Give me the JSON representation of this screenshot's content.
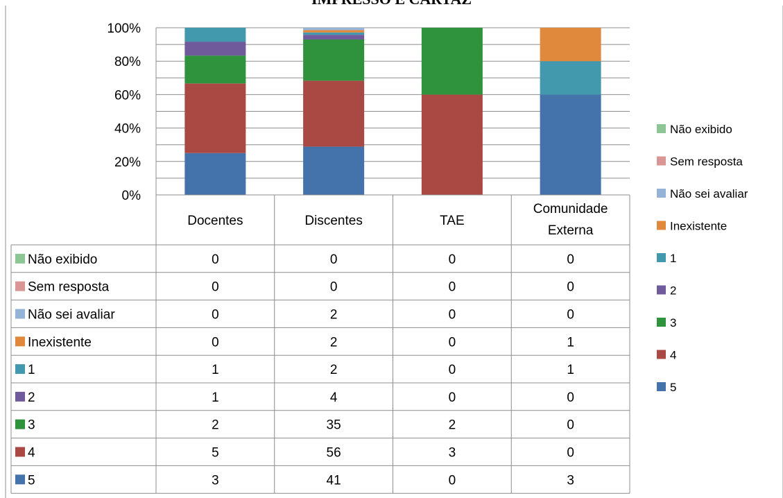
{
  "chart_data": {
    "type": "bar",
    "stacked": "percent",
    "title": "IMPRESSO E CARTAZ",
    "categories": [
      "Docentes",
      "Discentes",
      "TAE",
      "Comunidade Externa"
    ],
    "category_lines": [
      [
        "Docentes"
      ],
      [
        "Discentes"
      ],
      [
        "TAE"
      ],
      [
        "Comunidade",
        "Externa"
      ]
    ],
    "yticks": [
      "0%",
      "20%",
      "40%",
      "60%",
      "80%",
      "100%"
    ],
    "ylim": [
      0,
      100
    ],
    "grid": true,
    "legend_position": "right",
    "data_table": true,
    "series": [
      {
        "name": "Não exibido",
        "color": "#8cc694",
        "values": [
          0,
          0,
          0,
          0
        ]
      },
      {
        "name": "Sem resposta",
        "color": "#d99694",
        "values": [
          0,
          0,
          0,
          0
        ]
      },
      {
        "name": "Não sei avaliar",
        "color": "#95b3d7",
        "values": [
          0,
          2,
          0,
          0
        ]
      },
      {
        "name": "Inexistente",
        "color": "#e0883b",
        "values": [
          0,
          2,
          0,
          1
        ]
      },
      {
        "name": "1",
        "color": "#4299ae",
        "values": [
          1,
          2,
          0,
          1
        ]
      },
      {
        "name": "2",
        "color": "#6f5a9b",
        "values": [
          1,
          4,
          0,
          0
        ]
      },
      {
        "name": "3",
        "color": "#2e933c",
        "values": [
          2,
          35,
          2,
          0
        ]
      },
      {
        "name": "4",
        "color": "#aa4844",
        "values": [
          5,
          56,
          3,
          0
        ]
      },
      {
        "name": "5",
        "color": "#4472aa",
        "values": [
          3,
          41,
          0,
          3
        ]
      }
    ]
  }
}
